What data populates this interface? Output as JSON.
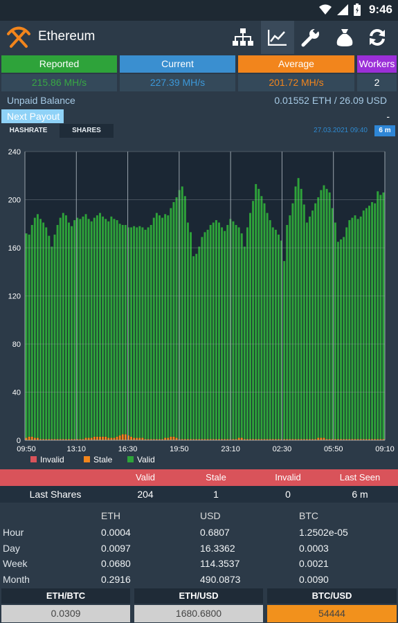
{
  "status_bar": {
    "time": "9:46"
  },
  "app_bar": {
    "title": "Ethereum",
    "actions": [
      "network-icon",
      "chart-icon",
      "wrench-icon",
      "money-bag-icon",
      "refresh-icon"
    ]
  },
  "stats": [
    {
      "label": "Reported",
      "value": "215.86 MH/s",
      "label_bg": "#2ea33a",
      "value_color": "#38a844"
    },
    {
      "label": "Current",
      "value": "227.39 MH/s",
      "label_bg": "#3a8fd0",
      "value_color": "#3c98d9"
    },
    {
      "label": "Average",
      "value": "201.72 MH/s",
      "label_bg": "#f2851c",
      "value_color": "#f2851c"
    },
    {
      "label": "Workers",
      "value": "2",
      "label_bg": "#9b2fd8",
      "value_color": "#ffffff"
    }
  ],
  "balance": {
    "label": "Unpaid Balance",
    "value": "0.01552 ETH / 26.09 USD"
  },
  "payout": {
    "label": "Next Payout",
    "value": "-"
  },
  "chart_tabs": {
    "tab1": "HASHRATE",
    "tab2": "SHARES",
    "timestamp": "27.03.2021 09:40",
    "badge": "6 m"
  },
  "chart_data": {
    "type": "bar",
    "stacked": true,
    "x_tick_labels": [
      "09:50",
      "13:10",
      "16:30",
      "19:50",
      "23:10",
      "02:30",
      "05:50",
      "09:10"
    ],
    "y_ticks": [
      0,
      40,
      80,
      120,
      160,
      200,
      240
    ],
    "ylim": [
      0,
      240
    ],
    "legend": [
      {
        "name": "Invalid",
        "color": "#d9535a"
      },
      {
        "name": "Stale",
        "color": "#f2851c"
      },
      {
        "name": "Valid",
        "color": "#2ea33a"
      }
    ],
    "series": [
      {
        "name": "Valid",
        "values": [
          170,
          168,
          176,
          183,
          186,
          183,
          180,
          176,
          169,
          160,
          170,
          178,
          184,
          188,
          186,
          180,
          177,
          182,
          184,
          183,
          185,
          186,
          182,
          180,
          182,
          184,
          186,
          183,
          181,
          180,
          184,
          182,
          180,
          176,
          174,
          174,
          173,
          174,
          176,
          175,
          176,
          175,
          174,
          176,
          178,
          184,
          188,
          186,
          184,
          186,
          185,
          190,
          195,
          200,
          207,
          210,
          202,
          180,
          172,
          152,
          154,
          160,
          168,
          172,
          174,
          178,
          180,
          182,
          180,
          176,
          173,
          178,
          183,
          181,
          178,
          175,
          170,
          160,
          176,
          188,
          198,
          212,
          208,
          202,
          196,
          188,
          182,
          176,
          174,
          170,
          165,
          148,
          178,
          186,
          196,
          210,
          217,
          208,
          195,
          180,
          185,
          190,
          196,
          200,
          206,
          210,
          208,
          205,
          192,
          180,
          164,
          166,
          168,
          176,
          182,
          184,
          186,
          183,
          185,
          190,
          192,
          194,
          197,
          196,
          206,
          203,
          205
        ]
      },
      {
        "name": "Stale",
        "values": [
          2,
          3,
          3,
          2,
          2,
          1,
          1,
          1,
          1,
          1,
          1,
          1,
          1,
          1,
          1,
          1,
          1,
          1,
          1,
          1,
          1,
          2,
          2,
          2,
          3,
          3,
          3,
          3,
          3,
          2,
          2,
          2,
          3,
          4,
          5,
          5,
          4,
          3,
          2,
          2,
          2,
          2,
          1,
          1,
          1,
          1,
          1,
          1,
          1,
          2,
          2,
          3,
          3,
          2,
          1,
          1,
          1,
          1,
          1,
          1,
          1,
          1,
          1,
          1,
          1,
          1,
          1,
          1,
          1,
          1,
          1,
          1,
          1,
          1,
          1,
          2,
          2,
          1,
          1,
          1,
          1,
          1,
          1,
          1,
          1,
          1,
          1,
          1,
          1,
          1,
          1,
          1,
          1,
          1,
          1,
          1,
          1,
          1,
          1,
          1,
          1,
          1,
          1,
          2,
          2,
          2,
          1,
          1,
          1,
          1,
          1,
          1,
          1,
          1,
          1,
          1,
          1,
          1,
          1,
          1,
          1,
          1,
          1,
          1,
          1,
          1,
          1
        ]
      },
      {
        "name": "Invalid",
        "values": [
          0,
          0,
          0,
          0,
          0,
          0,
          0,
          0,
          0,
          0,
          0,
          0,
          0,
          0,
          0,
          0,
          0,
          0,
          0,
          0,
          0,
          0,
          0,
          0,
          0,
          0,
          0,
          0,
          0,
          0,
          0,
          0,
          0,
          0,
          0,
          0,
          0,
          0,
          0,
          0,
          0,
          0,
          0,
          0,
          0,
          0,
          0,
          0,
          0,
          0,
          0,
          0,
          0,
          0,
          0,
          0,
          0,
          0,
          0,
          0,
          0,
          0,
          0,
          0,
          0,
          0,
          0,
          0,
          0,
          0,
          0,
          0,
          0,
          0,
          0,
          0,
          0,
          0,
          0,
          0,
          0,
          0,
          0,
          0,
          0,
          0,
          0,
          0,
          0,
          0,
          0,
          0,
          0,
          0,
          0,
          0,
          0,
          0,
          0,
          0,
          0,
          0,
          0,
          0,
          0,
          0,
          0,
          0,
          0,
          0,
          0,
          0,
          0,
          0,
          0,
          0,
          0,
          0,
          0,
          0,
          0,
          0,
          0,
          0,
          0,
          0,
          0
        ]
      }
    ]
  },
  "shares": {
    "headers": [
      "Valid",
      "Stale",
      "Invalid",
      "Last Seen"
    ],
    "row": {
      "label": "Last Shares",
      "valid": "204",
      "stale": "1",
      "invalid": "0",
      "last_seen": "6 m"
    }
  },
  "prices": {
    "headers": [
      "ETH",
      "USD",
      "BTC"
    ],
    "rows": [
      {
        "label": "Hour",
        "eth": "0.0004",
        "usd": "0.6807",
        "btc": "1.2502e-05"
      },
      {
        "label": "Day",
        "eth": "0.0097",
        "usd": "16.3362",
        "btc": "0.0003"
      },
      {
        "label": "Week",
        "eth": "0.0680",
        "usd": "114.3537",
        "btc": "0.0021"
      },
      {
        "label": "Month",
        "eth": "0.2916",
        "usd": "490.0873",
        "btc": "0.0090"
      }
    ]
  },
  "rates": [
    {
      "label": "ETH/BTC",
      "value": "0.0309",
      "bg": "#d0d0d0"
    },
    {
      "label": "ETH/USD",
      "value": "1680.6800",
      "bg": "#d0d0d0"
    },
    {
      "label": "BTC/USD",
      "value": "54444",
      "bg": "#f2911c"
    }
  ]
}
